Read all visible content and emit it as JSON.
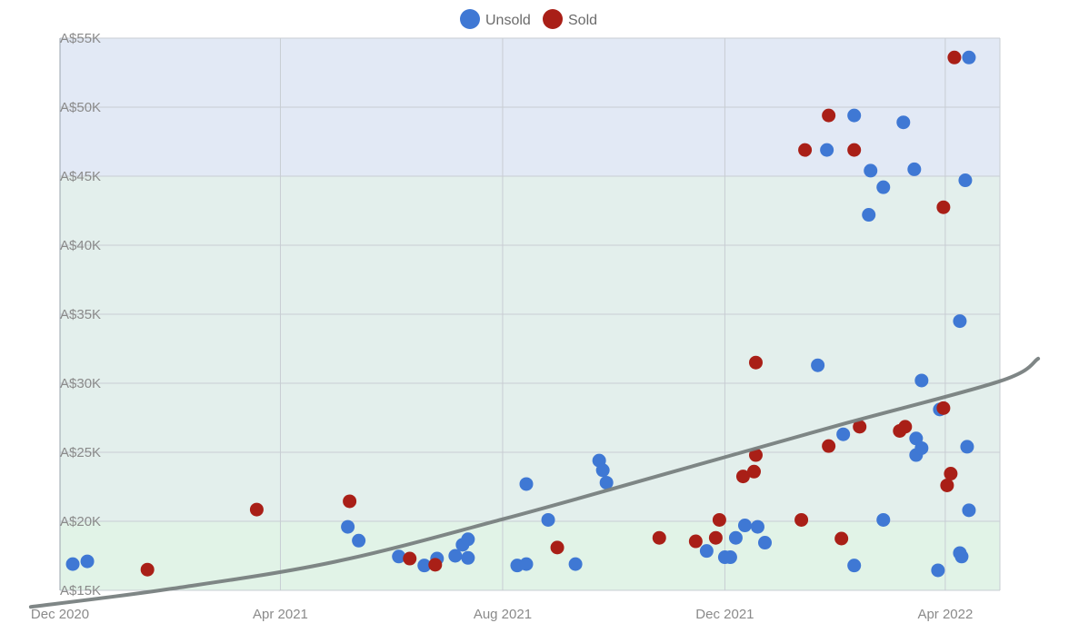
{
  "chart_data": {
    "type": "scatter",
    "x_axis": {
      "type": "date",
      "min": "2020-12-01",
      "max": "2022-05-01",
      "ticks": [
        {
          "date": "2020-12-01",
          "label": "Dec 2020"
        },
        {
          "date": "2021-04-01",
          "label": "Apr 2021"
        },
        {
          "date": "2021-08-01",
          "label": "Aug 2021"
        },
        {
          "date": "2021-12-01",
          "label": "Dec 2021"
        },
        {
          "date": "2022-04-01",
          "label": "Apr 2022"
        }
      ]
    },
    "y_axis": {
      "min": 15000,
      "max": 55000,
      "ticks": [
        {
          "value": 15000,
          "label": "A$15K"
        },
        {
          "value": 20000,
          "label": "A$20K"
        },
        {
          "value": 25000,
          "label": "A$25K"
        },
        {
          "value": 30000,
          "label": "A$30K"
        },
        {
          "value": 35000,
          "label": "A$35K"
        },
        {
          "value": 40000,
          "label": "A$40K"
        },
        {
          "value": 45000,
          "label": "A$45K"
        },
        {
          "value": 50000,
          "label": "A$50K"
        },
        {
          "value": 55000,
          "label": "A$55K"
        }
      ]
    },
    "bands": [
      {
        "from": 15000,
        "to": 20000,
        "color": "#e1f3e7"
      },
      {
        "from": 20000,
        "to": 45000,
        "color": "#e3efec"
      },
      {
        "from": 45000,
        "to": 55000,
        "color": "#e2e9f5"
      }
    ],
    "grid": true,
    "legend_position": "top-center",
    "series": [
      {
        "name": "Unsold",
        "color": "#3f78d4",
        "points": [
          [
            "2020-12-08",
            16900
          ],
          [
            "2020-12-16",
            17100
          ],
          [
            "2021-05-08",
            19600
          ],
          [
            "2021-05-14",
            18600
          ],
          [
            "2021-06-05",
            17450
          ],
          [
            "2021-06-19",
            16800
          ],
          [
            "2021-06-26",
            17300
          ],
          [
            "2021-07-06",
            17500
          ],
          [
            "2021-07-10",
            18300
          ],
          [
            "2021-07-13",
            18700
          ],
          [
            "2021-07-13",
            17350
          ],
          [
            "2021-08-09",
            16800
          ],
          [
            "2021-08-14",
            16900
          ],
          [
            "2021-08-14",
            22700
          ],
          [
            "2021-08-26",
            20100
          ],
          [
            "2021-09-10",
            16900
          ],
          [
            "2021-09-23",
            24400
          ],
          [
            "2021-09-25",
            23700
          ],
          [
            "2021-09-27",
            22800
          ],
          [
            "2021-11-21",
            17850
          ],
          [
            "2021-12-01",
            17400
          ],
          [
            "2021-12-04",
            17400
          ],
          [
            "2021-12-07",
            18800
          ],
          [
            "2021-12-12",
            19700
          ],
          [
            "2021-12-19",
            19600
          ],
          [
            "2021-12-23",
            18450
          ],
          [
            "2022-01-21",
            31300
          ],
          [
            "2022-01-26",
            46900
          ],
          [
            "2022-02-04",
            26300
          ],
          [
            "2022-02-10",
            49400
          ],
          [
            "2022-02-10",
            16800
          ],
          [
            "2022-02-18",
            42200
          ],
          [
            "2022-02-19",
            45400
          ],
          [
            "2022-02-26",
            44200
          ],
          [
            "2022-02-26",
            20100
          ],
          [
            "2022-03-09",
            48900
          ],
          [
            "2022-03-15",
            45500
          ],
          [
            "2022-03-16",
            26000
          ],
          [
            "2022-03-16",
            24800
          ],
          [
            "2022-03-19",
            30200
          ],
          [
            "2022-03-19",
            25300
          ],
          [
            "2022-03-28",
            16450
          ],
          [
            "2022-03-29",
            28100
          ],
          [
            "2022-04-09",
            34500
          ],
          [
            "2022-04-09",
            17700
          ],
          [
            "2022-04-10",
            17450
          ],
          [
            "2022-04-12",
            44700
          ],
          [
            "2022-04-13",
            25400
          ],
          [
            "2022-04-14",
            53600
          ],
          [
            "2022-04-14",
            20800
          ]
        ]
      },
      {
        "name": "Sold",
        "color": "#a91f17",
        "points": [
          [
            "2021-01-18",
            16500
          ],
          [
            "2021-03-19",
            20850
          ],
          [
            "2021-05-09",
            21450
          ],
          [
            "2021-06-11",
            17300
          ],
          [
            "2021-06-25",
            16850
          ],
          [
            "2021-08-31",
            18100
          ],
          [
            "2021-10-26",
            18800
          ],
          [
            "2021-11-15",
            18550
          ],
          [
            "2021-11-26",
            18800
          ],
          [
            "2021-11-28",
            20100
          ],
          [
            "2021-12-11",
            23250
          ],
          [
            "2021-12-17",
            23600
          ],
          [
            "2021-12-18",
            24800
          ],
          [
            "2021-12-18",
            31500
          ],
          [
            "2022-01-12",
            20100
          ],
          [
            "2022-01-14",
            46900
          ],
          [
            "2022-01-27",
            25450
          ],
          [
            "2022-01-27",
            49400
          ],
          [
            "2022-02-03",
            18750
          ],
          [
            "2022-02-10",
            46900
          ],
          [
            "2022-02-13",
            26850
          ],
          [
            "2022-03-07",
            26550
          ],
          [
            "2022-03-10",
            26850
          ],
          [
            "2022-03-31",
            28200
          ],
          [
            "2022-03-31",
            42750
          ],
          [
            "2022-04-02",
            22600
          ],
          [
            "2022-04-04",
            23450
          ],
          [
            "2022-04-06",
            53600
          ]
        ]
      }
    ],
    "trendline": {
      "type": "exponential",
      "color": "#788080",
      "points": [
        [
          "2020-11-15",
          13800
        ],
        [
          "2021-02-01",
          15130
        ],
        [
          "2021-05-01",
          17070
        ],
        [
          "2021-08-01",
          20150
        ],
        [
          "2021-11-01",
          23530
        ],
        [
          "2022-02-01",
          26950
        ],
        [
          "2022-05-01",
          30150
        ],
        [
          "2022-05-22",
          31780
        ]
      ]
    }
  }
}
